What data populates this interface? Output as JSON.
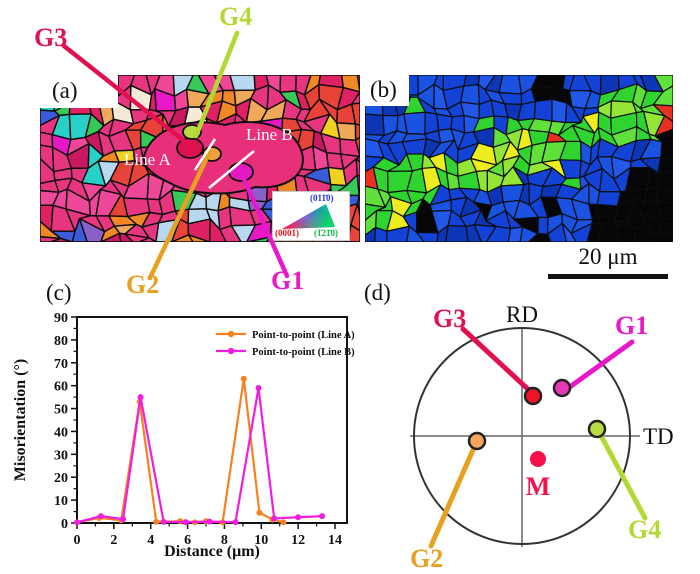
{
  "figure": {
    "panel_a": {
      "label": "(a)",
      "line_a_label": "Line A",
      "line_b_label": "Line B",
      "ipf_key": {
        "corner_top": "(011̄0)",
        "corner_bottom_left": "(0001)",
        "corner_bottom_right": "(1̄21̄0)",
        "color_top": "#2233ee",
        "color_bottom_left": "#ee1111",
        "color_bottom_right": "#11bb44"
      },
      "grain_annotations": [
        {
          "id": "G3",
          "text": "G3",
          "color": "#e0114e"
        },
        {
          "id": "G4",
          "text": "G4",
          "color": "#b4d832"
        },
        {
          "id": "G2",
          "text": "G2",
          "color": "#e8a020"
        },
        {
          "id": "G1",
          "text": "G1",
          "color": "#e818c8"
        }
      ]
    },
    "panel_b": {
      "label": "(b)"
    },
    "panel_c": {
      "label": "(c)"
    },
    "panel_d": {
      "label": "(d)"
    },
    "scale_bar": {
      "label": "20 μm"
    }
  },
  "chart_data": {
    "type": "line",
    "title": "",
    "xlabel": "Distance (μm)",
    "ylabel": "Misorientation (°)",
    "xlim": [
      0,
      14
    ],
    "ylim": [
      0,
      90
    ],
    "xtick_step": 2,
    "ytick_step": 10,
    "grid": false,
    "legend_position": "top-right",
    "series": [
      {
        "name": "Point-to-point (Line A)",
        "color": "#f5821e",
        "x": [
          0,
          1.2,
          2.4,
          3.4,
          4.3,
          5.6,
          6.4,
          7.0,
          7.9,
          9.05,
          9.9,
          10.6,
          11.2
        ],
        "y": [
          0.3,
          2.2,
          1.2,
          53,
          0.5,
          0.8,
          0.3,
          0.8,
          0.3,
          63,
          4.5,
          1.5,
          0.3
        ]
      },
      {
        "name": "Point-to-point (Line B)",
        "color": "#f01ede",
        "x": [
          0,
          1.3,
          2.5,
          3.45,
          4.7,
          5.9,
          7.2,
          8.6,
          9.85,
          10.7,
          12.0,
          13.3
        ],
        "y": [
          0.3,
          3.0,
          1.7,
          55,
          0.5,
          0.4,
          0.6,
          0.4,
          59,
          2.0,
          2.5,
          3.0
        ]
      }
    ]
  },
  "pole_figure": {
    "vertical_axis": "RD",
    "horizontal_axis": "TD",
    "points": [
      {
        "id": "G3",
        "label": "G3",
        "fill": "#f01322",
        "label_color": "#e0114e"
      },
      {
        "id": "G1",
        "label": "G1",
        "fill": "#e838b8",
        "label_color": "#e818c8"
      },
      {
        "id": "G2",
        "label": "G2",
        "fill": "#f5a55f",
        "label_color": "#e8a020"
      },
      {
        "id": "G4",
        "label": "G4",
        "fill": "#b8dc40",
        "label_color": "#b4d832"
      }
    ],
    "matrix_point": {
      "label": "M",
      "fill": "#f5104a",
      "label_color": "#f5104a"
    }
  }
}
